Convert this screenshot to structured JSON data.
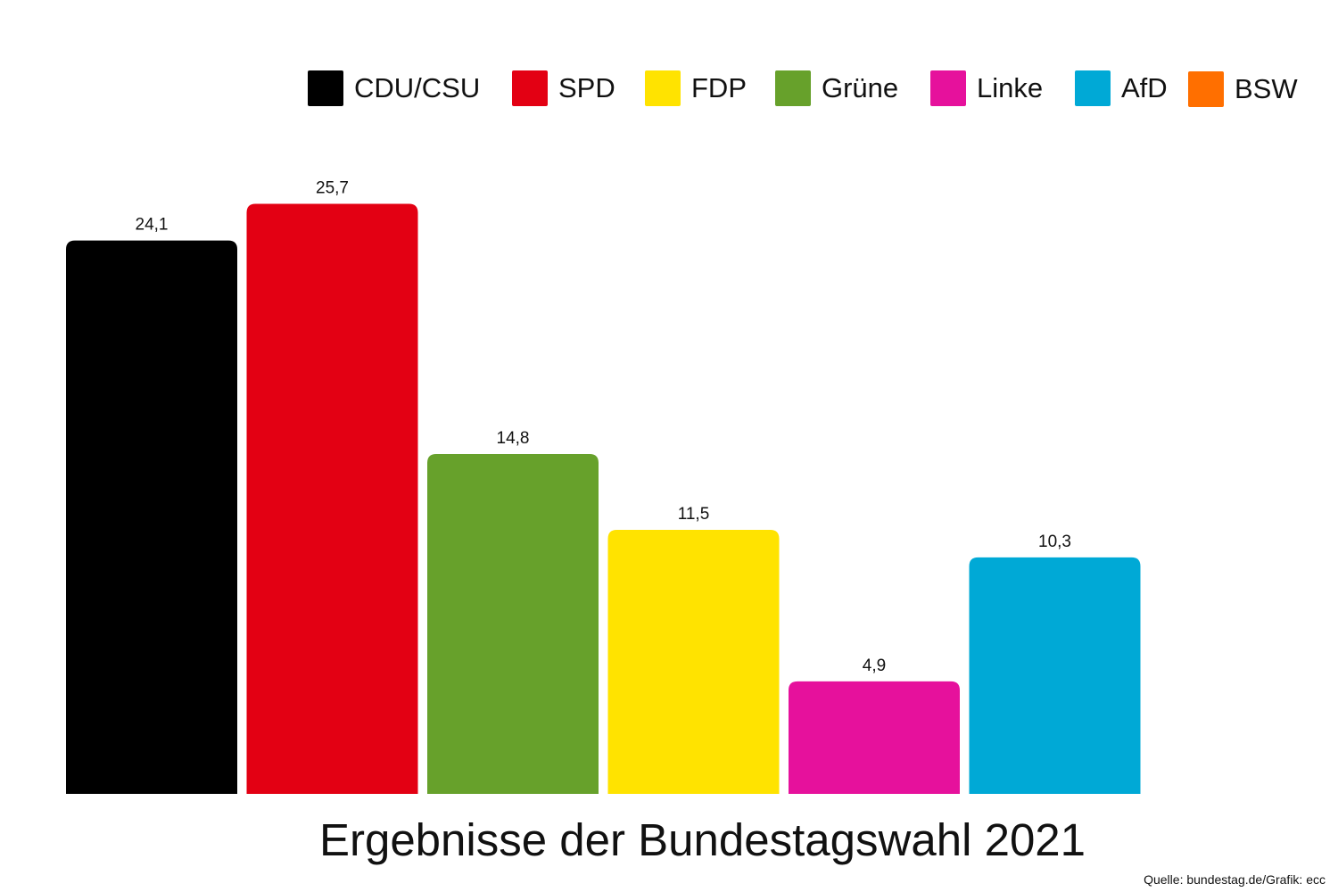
{
  "chart_data": {
    "type": "bar",
    "title": "Ergebnisse der Bundestagswahl 2021",
    "source": "Quelle: bundestag.de/Grafik: ecc",
    "categories": [
      "CDU/CSU",
      "SPD",
      "Grüne",
      "FDP",
      "Linke",
      "AfD"
    ],
    "values": [
      24.1,
      25.7,
      14.8,
      11.5,
      4.9,
      10.3
    ],
    "value_labels": [
      "24,1",
      "25,7",
      "14,8",
      "11,5",
      "4,9",
      "10,3"
    ],
    "bar_colors": [
      "#000000",
      "#e30013",
      "#67a12b",
      "#ffe300",
      "#e6119c",
      "#00a9d6"
    ],
    "legend": [
      {
        "label": "CDU/CSU",
        "color": "#000000"
      },
      {
        "label": "SPD",
        "color": "#e30013"
      },
      {
        "label": "FDP",
        "color": "#ffe300"
      },
      {
        "label": "Grüne",
        "color": "#67a12b"
      },
      {
        "label": "Linke",
        "color": "#e6119c"
      },
      {
        "label": "AfD",
        "color": "#00a9d6"
      },
      {
        "label": "BSW",
        "color": "#ff6f00"
      }
    ],
    "legend_position": "top-right",
    "ylim": [
      0,
      27
    ],
    "grid": false,
    "xlabel": "",
    "ylabel": ""
  }
}
